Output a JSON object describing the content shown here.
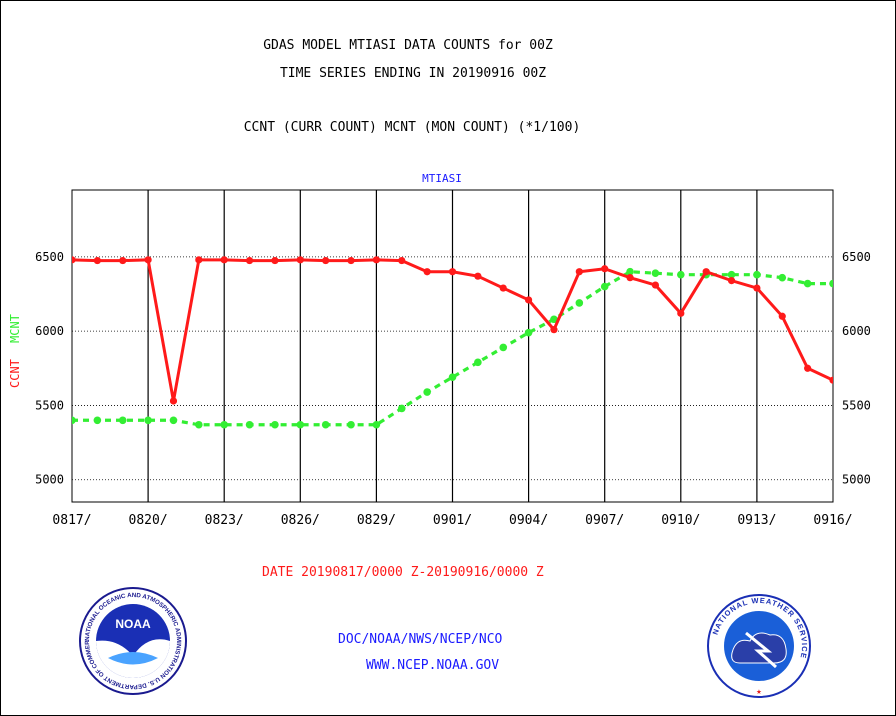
{
  "header": {
    "title_line1": "GDAS MODEL MTIASI DATA COUNTS for 00Z",
    "title_line2": "TIME SERIES ENDING IN 20190916 00Z",
    "subtitle": "CCNT (CURR COUNT) MCNT (MON COUNT) (*1/100)"
  },
  "footer": {
    "date_range": "DATE 20190817/0000 Z-20190916/0000 Z",
    "credit_line1": "DOC/NOAA/NWS/NCEP/NCO",
    "credit_line2": "WWW.NCEP.NOAA.GOV"
  },
  "logos": {
    "noaa_center": "NOAA",
    "noaa_ring": "NATIONAL OCEANIC AND ATMOSPHERIC ADMINISTRATION U.S. DEPARTMENT OF COMMERCE",
    "nws_ring": "NATIONAL WEATHER SERVICE"
  },
  "chart_data": {
    "type": "line",
    "panel_title": "MTIASI",
    "ylabel_series1": "CCNT",
    "ylabel_series2": "MCNT",
    "ylim": [
      4850,
      6950
    ],
    "yticks": [
      5000,
      5500,
      6000,
      6500
    ],
    "xlim": [
      0,
      30
    ],
    "xtick_positions": [
      0,
      3,
      6,
      9,
      12,
      15,
      18,
      21,
      24,
      27,
      30
    ],
    "xtick_labels": [
      "0817/",
      "0820/",
      "0823/",
      "0826/",
      "0829/",
      "0901/",
      "0904/",
      "0907/",
      "0910/",
      "0913/",
      "0916/"
    ],
    "grid": true,
    "colors": {
      "ccnt": "#ff1a1a",
      "mcnt": "#33ee33",
      "panel_title": "#1a1aff"
    },
    "series": [
      {
        "name": "CCNT",
        "x": [
          0,
          1,
          2,
          3,
          4,
          5,
          6,
          7,
          8,
          9,
          10,
          11,
          12,
          13,
          14,
          15,
          16,
          17,
          18,
          19,
          20,
          21,
          22,
          23,
          24,
          25,
          26,
          27,
          28,
          29,
          30
        ],
        "values": [
          6480,
          6475,
          6475,
          6480,
          5530,
          6480,
          6480,
          6475,
          6475,
          6480,
          6475,
          6475,
          6480,
          6475,
          6400,
          6400,
          6370,
          6290,
          6210,
          6010,
          6400,
          6420,
          6360,
          6310,
          6120,
          6400,
          6340,
          6290,
          6100,
          5750,
          5670
        ]
      },
      {
        "name": "MCNT",
        "x": [
          0,
          1,
          2,
          3,
          4,
          5,
          6,
          7,
          8,
          9,
          10,
          11,
          12,
          13,
          14,
          15,
          16,
          17,
          18,
          19,
          20,
          21,
          22,
          23,
          24,
          25,
          26,
          27,
          28,
          29,
          30
        ],
        "values": [
          5400,
          5400,
          5400,
          5400,
          5400,
          5370,
          5370,
          5370,
          5370,
          5370,
          5370,
          5370,
          5370,
          5480,
          5590,
          5690,
          5790,
          5890,
          5990,
          6080,
          6190,
          6300,
          6400,
          6390,
          6380,
          6380,
          6380,
          6380,
          6360,
          6320,
          6320
        ]
      }
    ]
  }
}
